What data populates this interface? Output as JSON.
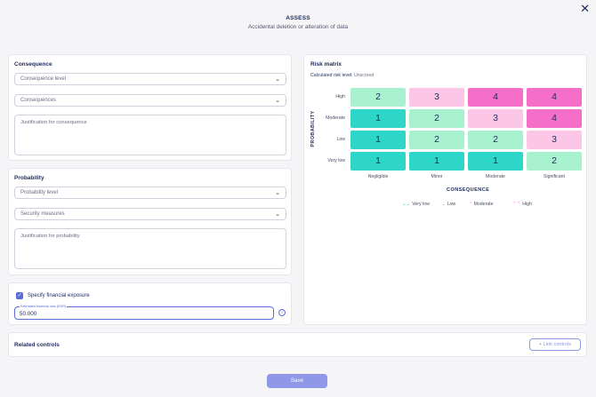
{
  "header": {
    "title": "ASSESS",
    "subtitle": "Accidental deletion or alteration of data",
    "close": "✕"
  },
  "consequence": {
    "title": "Consequence",
    "level_placeholder": "Consequence level",
    "consequences_placeholder": "Consequences",
    "justification_placeholder": "Justification for consequence"
  },
  "probability": {
    "title": "Probability",
    "level_placeholder": "Probability level",
    "measures_placeholder": "Security measures",
    "justification_placeholder": "Justification for probability"
  },
  "financial": {
    "checkbox_label": "Specify financial exposure",
    "checked": true,
    "input_label": "Estimated financial loss (EUR)",
    "input_value": "50.000"
  },
  "risk_matrix": {
    "title": "Risk matrix",
    "calculated_label": "Calculated risk level:",
    "calculated_value": "Unscored",
    "y_axis": "PROBABILITY",
    "x_axis": "CONSEQUENCE",
    "rows": [
      "High",
      "Moderate",
      "Low",
      "Very low"
    ],
    "columns": [
      "Negligible",
      "Minor",
      "Moderate",
      "Significant"
    ],
    "cells": [
      [
        {
          "v": "2",
          "lvl": "lo"
        },
        {
          "v": "3",
          "lvl": "mo"
        },
        {
          "v": "4",
          "lvl": "hi"
        },
        {
          "v": "4",
          "lvl": "hi"
        }
      ],
      [
        {
          "v": "1",
          "lvl": "vl"
        },
        {
          "v": "2",
          "lvl": "lo"
        },
        {
          "v": "3",
          "lvl": "mo"
        },
        {
          "v": "4",
          "lvl": "hi"
        }
      ],
      [
        {
          "v": "1",
          "lvl": "vl"
        },
        {
          "v": "2",
          "lvl": "lo"
        },
        {
          "v": "2",
          "lvl": "lo"
        },
        {
          "v": "3",
          "lvl": "mo"
        }
      ],
      [
        {
          "v": "1",
          "lvl": "vl"
        },
        {
          "v": "1",
          "lvl": "vl"
        },
        {
          "v": "1",
          "lvl": "vl"
        },
        {
          "v": "2",
          "lvl": "lo"
        }
      ]
    ],
    "legend": [
      {
        "label": "Very low",
        "icon": "double-chevron-down-icon",
        "glyph": "⌄⌄",
        "color": "#2ed6c8"
      },
      {
        "label": "Low",
        "icon": "chevron-down-icon",
        "glyph": "⌄",
        "color": "#6fe0b8"
      },
      {
        "label": "Moderate",
        "icon": "chevron-up-icon",
        "glyph": "^",
        "color": "#f3a4d6"
      },
      {
        "label": "High",
        "icon": "double-chevron-up-icon",
        "glyph": "⌃⌃",
        "color": "#f56fc8"
      }
    ]
  },
  "related": {
    "title": "Related controls",
    "link_label": "Link controls"
  },
  "footer": {
    "save_label": "Save"
  },
  "colors": {
    "accent": "#5b6cd9",
    "very_low": "#2ed6c8",
    "low": "#a8f2cf",
    "moderate": "#fcc6e6",
    "high": "#f56fc8"
  }
}
